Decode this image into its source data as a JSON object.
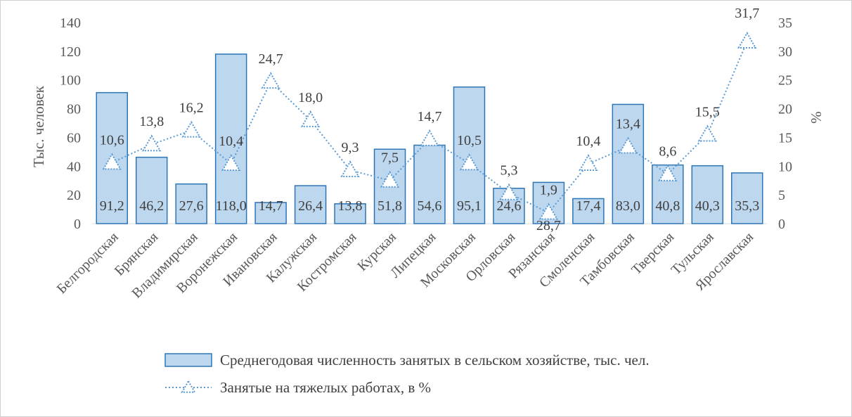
{
  "chart_data": {
    "type": "bar",
    "categories": [
      "Белгородская",
      "Брянская",
      "Владимирская",
      "Воронежская",
      "Ивановская",
      "Калужская",
      "Костромская",
      "Курская",
      "Липецкая",
      "Московская",
      "Орловская",
      "Рязанская",
      "Смоленская",
      "Тамбовская",
      "Тверская",
      "Тульская",
      "Ярославская"
    ],
    "series": [
      {
        "name": "Среднегодовая численность занятых в сельском хозяйстве, тыс. чел.",
        "type": "bar",
        "axis": "left",
        "values": [
          91.2,
          46.2,
          27.6,
          118.0,
          14.7,
          26.4,
          13.8,
          51.8,
          54.6,
          95.1,
          24.6,
          28.7,
          17.4,
          83.0,
          40.8,
          40.3,
          35.3
        ],
        "labels": [
          "91,2",
          "46,2",
          "27,6",
          "118,0",
          "14,7",
          "26,4",
          "13,8",
          "51,8",
          "54,6",
          "95,1",
          "24,6",
          "28,7",
          "17,4",
          "83,0",
          "40,8",
          "40,3",
          "35,3"
        ],
        "color": "#bdd7ee",
        "stroke": "#2e75b6"
      },
      {
        "name": "Занятые на тяжелых работах, в %",
        "type": "line",
        "axis": "right",
        "values": [
          10.6,
          13.8,
          16.2,
          10.4,
          24.7,
          18.0,
          9.3,
          7.5,
          14.7,
          10.5,
          5.3,
          1.9,
          10.4,
          13.4,
          8.6,
          15.5,
          31.7
        ],
        "labels": [
          "10,6",
          "13,8",
          "16,2",
          "10,4",
          "24,7",
          "18,0",
          "9,3",
          "7,5",
          "14,7",
          "10,5",
          "5,3",
          "1,9",
          "10,4",
          "13,4",
          "8,6",
          "15,5",
          "31,7"
        ],
        "color": "#5b9bd5"
      }
    ],
    "ylabel": "Тыс. человек",
    "ylim": [
      0,
      140
    ],
    "yticks": [
      "0",
      "20",
      "40",
      "60",
      "80",
      "100",
      "120",
      "140"
    ],
    "y2label": "%",
    "y2lim": [
      0,
      35
    ],
    "y2ticks": [
      "0",
      "5",
      "10",
      "15",
      "20",
      "25",
      "30",
      "35"
    ],
    "grid": false,
    "legend_position": "bottom"
  }
}
